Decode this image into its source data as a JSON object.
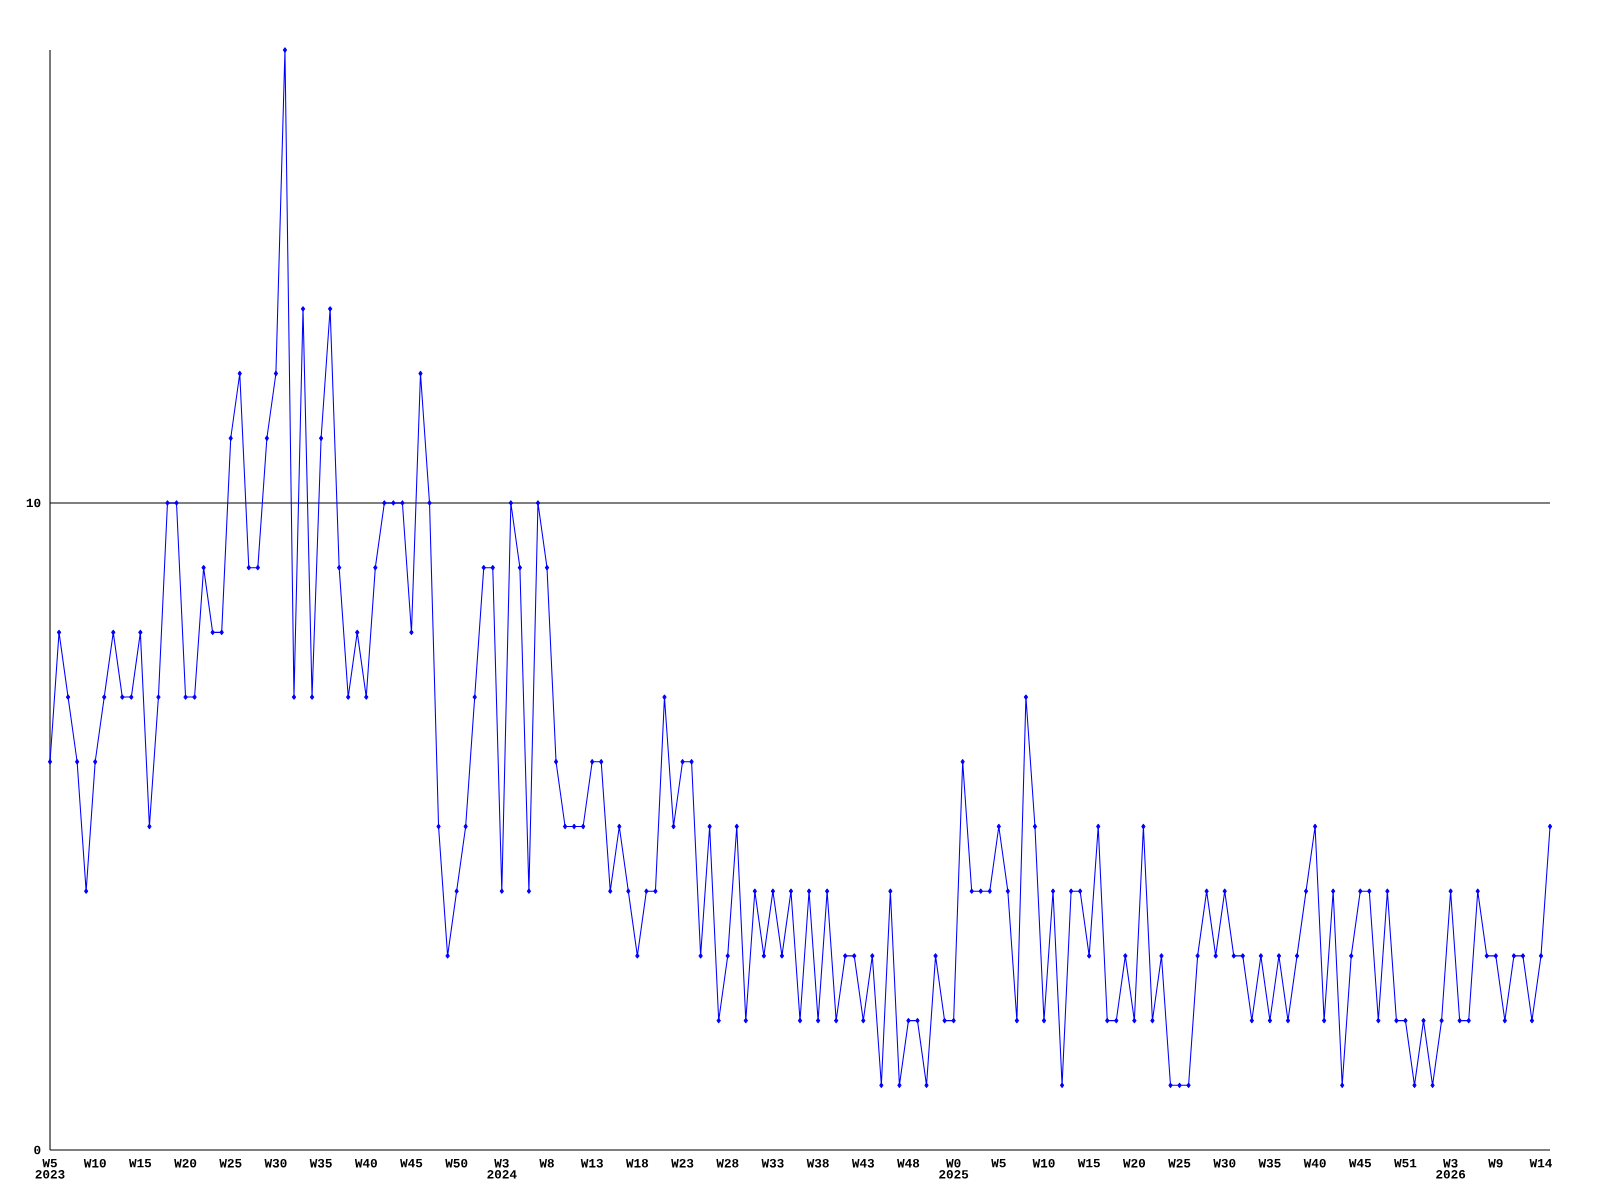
{
  "chart_data": {
    "type": "line",
    "color": "#0000ff",
    "marker": "diamond",
    "grid": "y",
    "ylim": [
      0,
      17
    ],
    "yticks": [
      0,
      10
    ],
    "categories": [
      "W5",
      null,
      null,
      null,
      null,
      "W10",
      null,
      null,
      null,
      null,
      "W15",
      null,
      null,
      null,
      null,
      "W20",
      null,
      null,
      null,
      null,
      "W25",
      null,
      null,
      null,
      null,
      "W30",
      null,
      null,
      null,
      null,
      "W35",
      null,
      null,
      null,
      null,
      "W40",
      null,
      null,
      null,
      null,
      "W45",
      null,
      null,
      null,
      null,
      "W50",
      null,
      null,
      null,
      null,
      "W3",
      null,
      null,
      null,
      null,
      "W8",
      null,
      null,
      null,
      null,
      "W13",
      null,
      null,
      null,
      null,
      "W18",
      null,
      null,
      null,
      null,
      "W23",
      null,
      null,
      null,
      null,
      "W28",
      null,
      null,
      null,
      null,
      "W33",
      null,
      null,
      null,
      null,
      "W38",
      null,
      null,
      null,
      null,
      "W43",
      null,
      null,
      null,
      null,
      "W48",
      null,
      null,
      null,
      null,
      "W0",
      null,
      null,
      null,
      null,
      "W5",
      null,
      null,
      null,
      null,
      "W10",
      null,
      null,
      null,
      null,
      "W15",
      null,
      null,
      null,
      null,
      "W20",
      null,
      null,
      null,
      null,
      "W25",
      null,
      null,
      null,
      null,
      "W30",
      null,
      null,
      null,
      null,
      "W35",
      null,
      null,
      null,
      null,
      "W40",
      null,
      null,
      null,
      null,
      "W45",
      null,
      null,
      null,
      null,
      "W51",
      null,
      null,
      null,
      null,
      "W3",
      null,
      null,
      null,
      null,
      "W9",
      null,
      null,
      null,
      null,
      "W14",
      null
    ],
    "values": [
      6,
      8,
      7,
      6,
      4,
      6,
      7,
      8,
      7,
      7,
      8,
      5,
      7,
      10,
      10,
      7,
      7,
      9,
      8,
      8,
      11,
      12,
      9,
      9,
      11,
      12,
      17,
      7,
      13,
      7,
      11,
      13,
      9,
      7,
      8,
      7,
      9,
      10,
      10,
      10,
      8,
      12,
      10,
      5,
      3,
      4,
      5,
      7,
      9,
      9,
      4,
      10,
      9,
      4,
      10,
      9,
      6,
      5,
      5,
      5,
      6,
      6,
      4,
      5,
      4,
      3,
      4,
      4,
      7,
      5,
      6,
      6,
      3,
      5,
      2,
      3,
      5,
      2,
      4,
      3,
      4,
      3,
      4,
      2,
      4,
      2,
      4,
      2,
      3,
      3,
      2,
      3,
      1,
      4,
      1,
      2,
      2,
      1,
      3,
      2,
      2,
      6,
      4,
      4,
      4,
      5,
      4,
      2,
      7,
      5,
      2,
      4,
      1,
      4,
      4,
      3,
      5,
      2,
      2,
      3,
      2,
      5,
      2,
      3,
      1,
      1,
      1,
      3,
      4,
      3,
      4,
      3,
      3,
      2,
      3,
      2,
      3,
      2,
      3,
      4,
      5,
      2,
      4,
      1,
      3,
      4,
      4,
      2,
      4,
      2,
      2,
      1,
      2,
      1,
      2,
      4,
      2,
      2,
      4,
      3,
      3,
      2,
      3,
      3,
      2,
      3,
      5
    ],
    "annotations": [
      "2023",
      "2024",
      "2025",
      "2026"
    ]
  }
}
